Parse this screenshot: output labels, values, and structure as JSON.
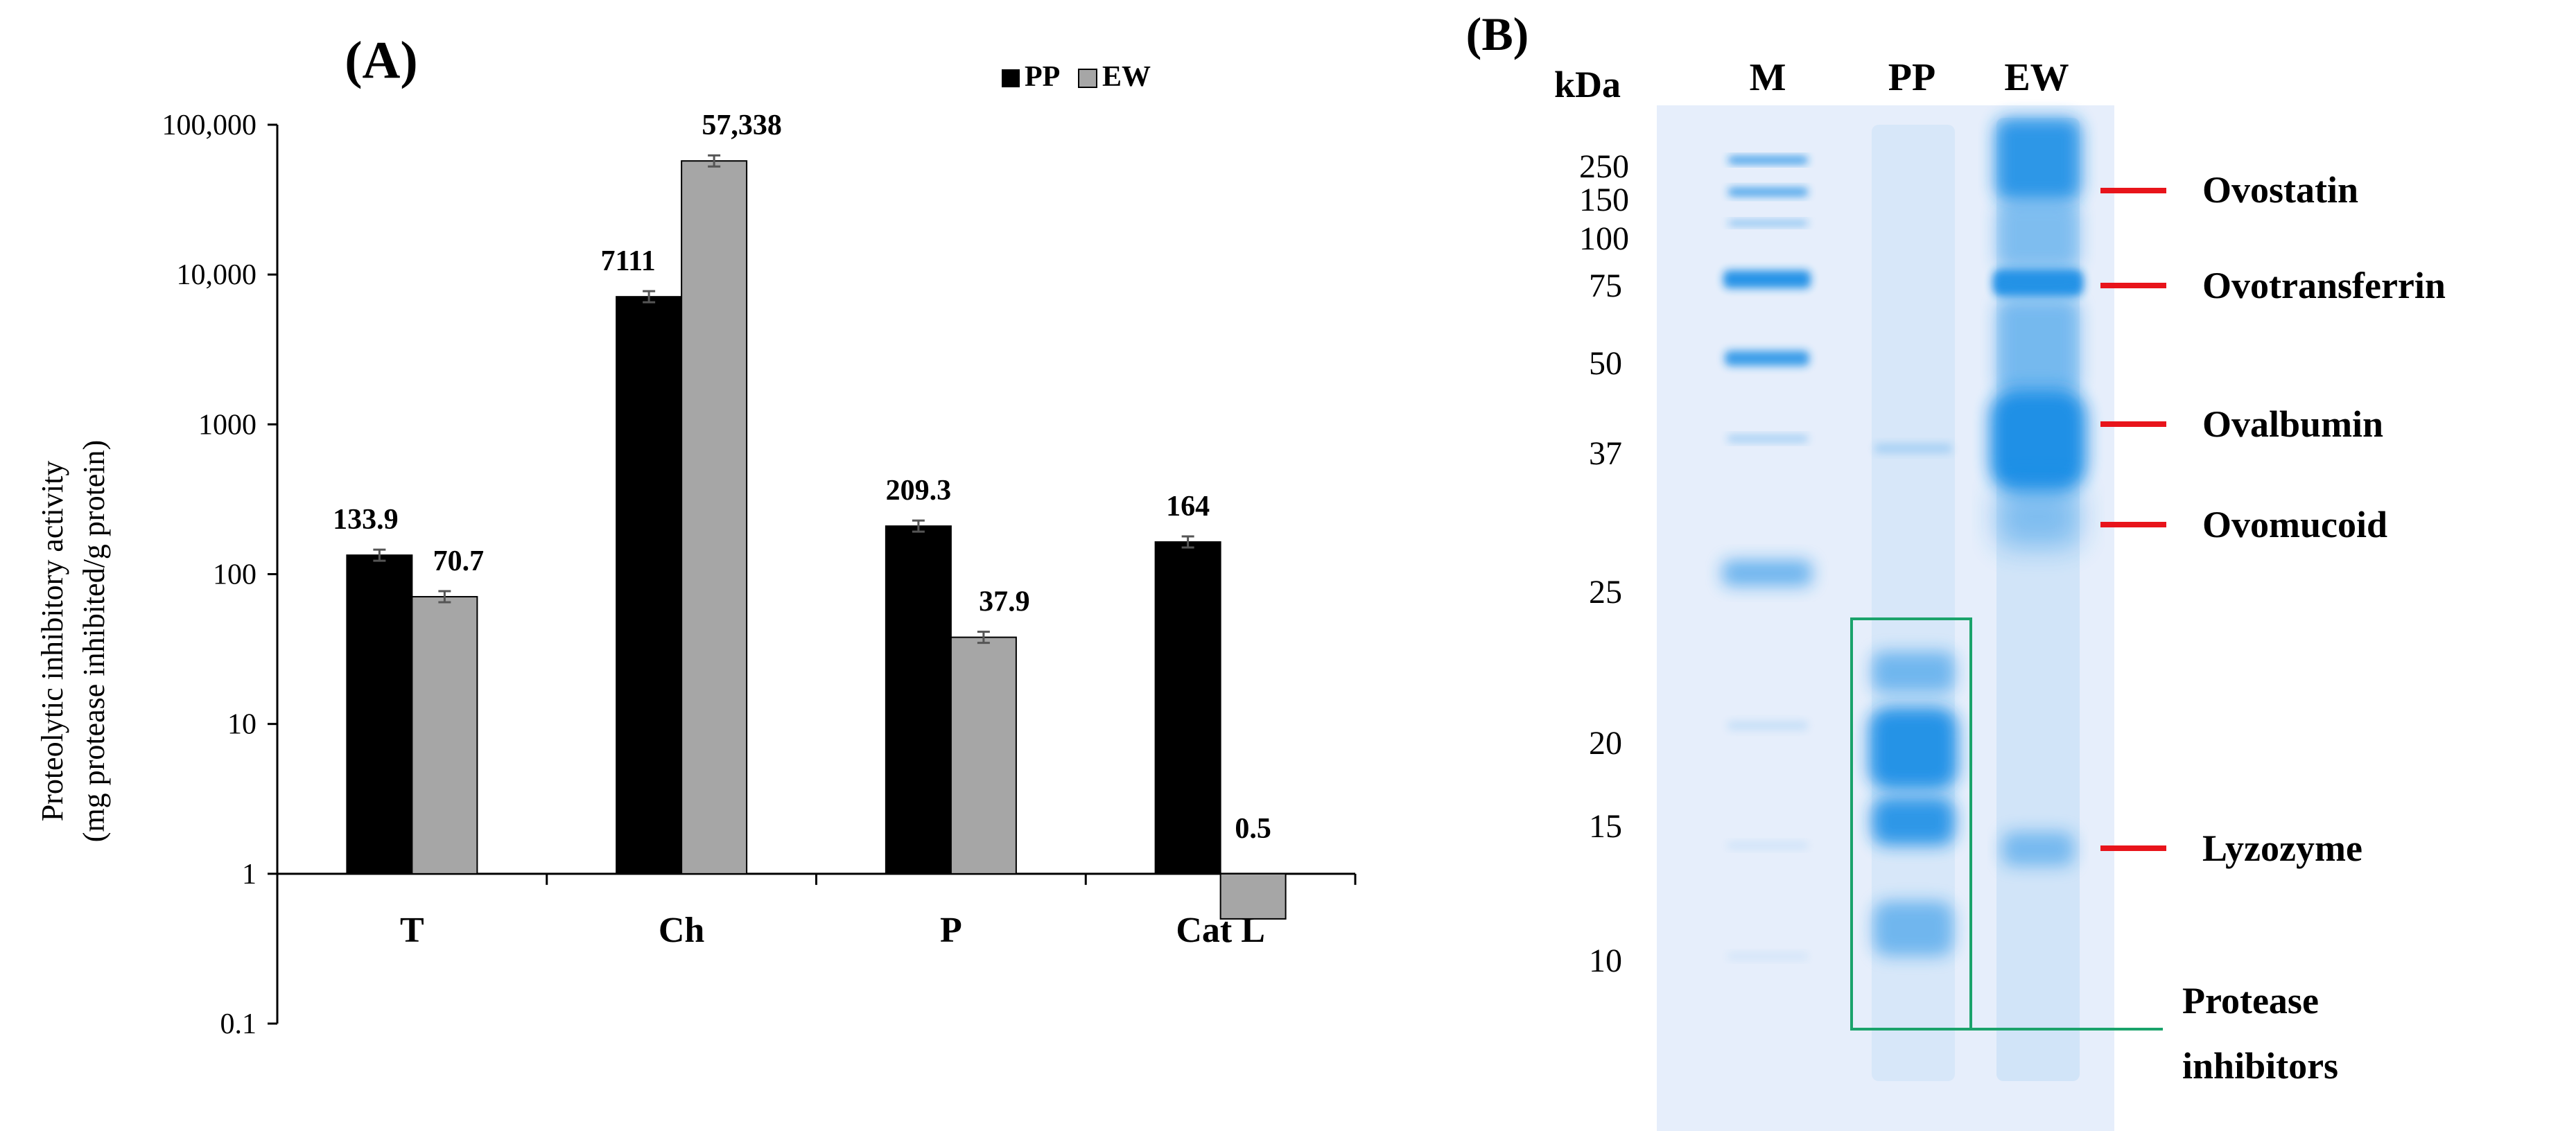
{
  "panel_a": {
    "label": "(A)",
    "ylabel_line1": "Proteolytic  inhibitory  activity",
    "ylabel_line2": "(mg protease inhibited/g protein)",
    "legend": [
      "PP",
      "EW"
    ]
  },
  "panel_b": {
    "label": "(B)",
    "kda_label": "kDa",
    "lane_labels": [
      "M",
      "PP",
      "EW"
    ],
    "marker_sizes": [
      "250",
      "150",
      "100",
      "75",
      "50",
      "37",
      "25",
      "20",
      "15",
      "10"
    ],
    "proteins": [
      "Ovostatin",
      "Ovotransferrin",
      "Ovalbumin",
      "Ovomucoid",
      "Lyzozyme"
    ],
    "box_label_line1": "Protease",
    "box_label_line2": "inhibitors",
    "colors": {
      "gel_blue": "#1a8fe6",
      "red_marker": "#e8141b",
      "green_box": "#1aa36b"
    }
  },
  "chart_data": {
    "type": "bar",
    "scale": "log",
    "ylim": [
      0.1,
      100000
    ],
    "yticks": [
      "0.1",
      "1",
      "10",
      "100",
      "1000",
      "10,000",
      "100,000"
    ],
    "ytick_values": [
      0.1,
      1,
      10,
      100,
      1000,
      10000,
      100000
    ],
    "categories": [
      "T",
      "Ch",
      "P",
      "Cat L"
    ],
    "series": [
      {
        "name": "PP",
        "values": [
          133.9,
          7111,
          209.3,
          164
        ],
        "labels": [
          "133.9",
          "7111",
          "209.3",
          "164"
        ],
        "color": "#000000"
      },
      {
        "name": "EW",
        "values": [
          70.7,
          57338,
          37.9,
          0.5
        ],
        "labels": [
          "70.7",
          "57,338",
          "37.9",
          "0.5"
        ],
        "color": "#a6a6a6"
      }
    ],
    "legend_position": "top-right",
    "grid": false
  }
}
